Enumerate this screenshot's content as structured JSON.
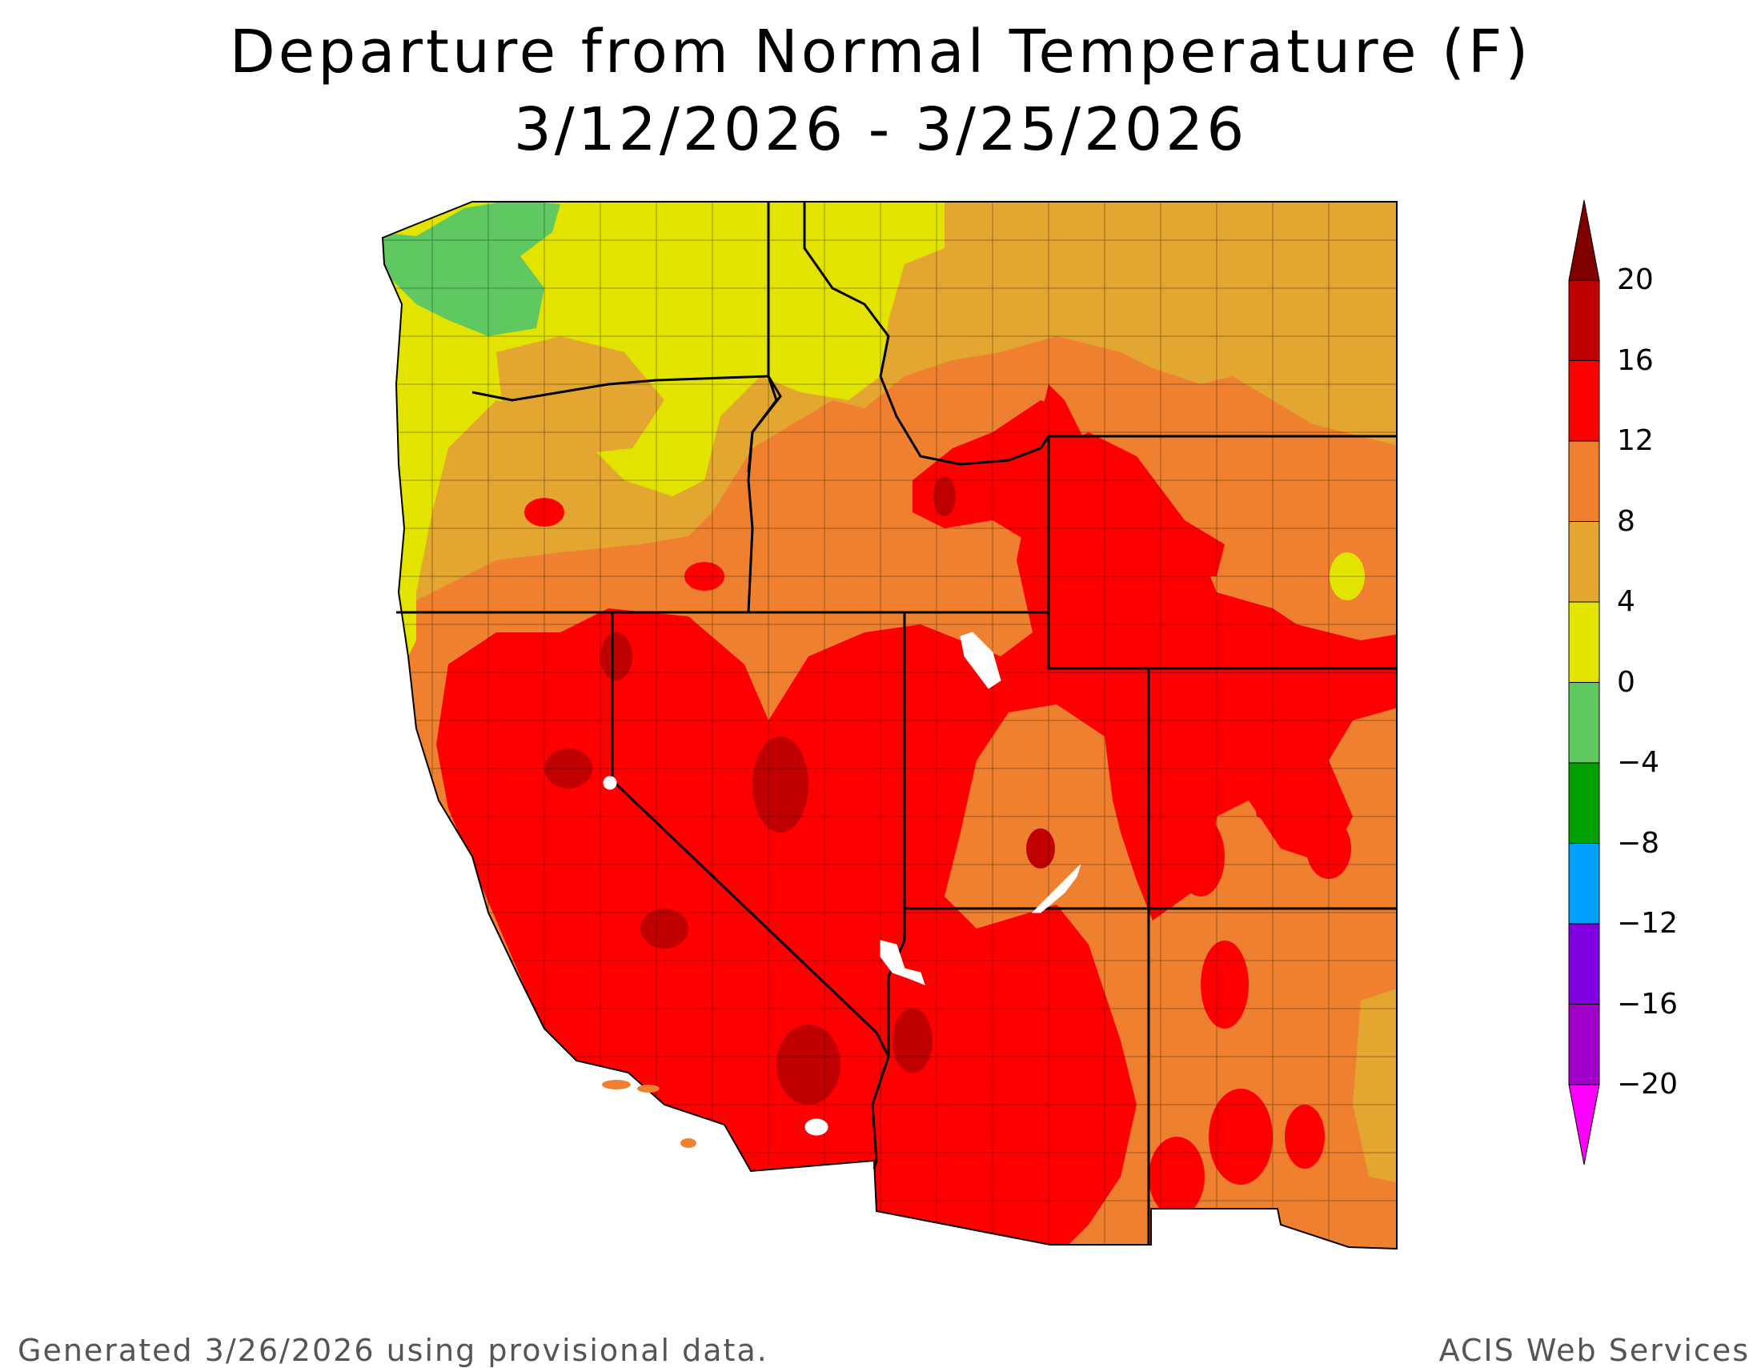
{
  "title": "Departure from Normal Temperature (F)",
  "subtitle": "3/12/2026 - 3/25/2026",
  "legend": {
    "ticks": [
      "20",
      "16",
      "12",
      "8",
      "4",
      "0",
      "−4",
      "−8",
      "−12",
      "−16",
      "−20"
    ],
    "bins": [
      {
        "min": 20,
        "max": null,
        "color": "#800000"
      },
      {
        "min": 16,
        "max": 20,
        "color": "#c00000"
      },
      {
        "min": 12,
        "max": 16,
        "color": "#ff0000"
      },
      {
        "min": 8,
        "max": 12,
        "color": "#ef8030"
      },
      {
        "min": 4,
        "max": 8,
        "color": "#e3a630"
      },
      {
        "min": 0,
        "max": 4,
        "color": "#e3e300"
      },
      {
        "min": -4,
        "max": 0,
        "color": "#60c860"
      },
      {
        "min": -8,
        "max": -4,
        "color": "#00a000"
      },
      {
        "min": -12,
        "max": -8,
        "color": "#00a0ff"
      },
      {
        "min": -16,
        "max": -12,
        "color": "#8000e0"
      },
      {
        "min": -20,
        "max": -16,
        "color": "#a000c8"
      },
      {
        "min": null,
        "max": -20,
        "color": "#ff00ff"
      }
    ]
  },
  "footer": {
    "left": "Generated 3/26/2026 using provisional data.",
    "right": "ACIS Web Services"
  }
}
